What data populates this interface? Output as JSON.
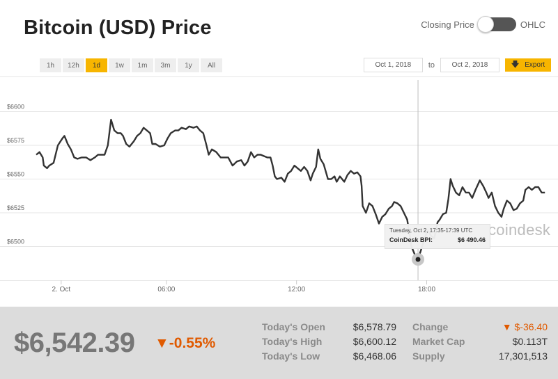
{
  "header": {
    "title": "Bitcoin (USD) Price",
    "toggle_left_label": "Closing Price",
    "toggle_right_label": "OHLC"
  },
  "ranges": [
    {
      "label": "1h",
      "active": false
    },
    {
      "label": "12h",
      "active": false
    },
    {
      "label": "1d",
      "active": true
    },
    {
      "label": "1w",
      "active": false
    },
    {
      "label": "1m",
      "active": false
    },
    {
      "label": "3m",
      "active": false
    },
    {
      "label": "1y",
      "active": false
    },
    {
      "label": "All",
      "active": false
    }
  ],
  "date_range": {
    "from": "Oct 1, 2018",
    "to_label": "to",
    "to": "Oct 2, 2018",
    "export_label": "Export"
  },
  "colors": {
    "accent": "#f7b500",
    "line": "#333333",
    "negative": "#e05a00",
    "grid": "#e6e6e6"
  },
  "watermark": "coindesk",
  "tooltip": {
    "time": "Tuesday, Oct 2, 17:35-17:39 UTC",
    "label": "CoinDesk BPI:",
    "value": "$6 490.46"
  },
  "chart_data": {
    "type": "line",
    "xlabel": "",
    "ylabel": "",
    "ylim": [
      6475,
      6626
    ],
    "xlim": [
      0,
      23.7
    ],
    "x_ticks": [
      {
        "x": 1.15,
        "label": "2. Oct"
      },
      {
        "x": 6,
        "label": "06:00"
      },
      {
        "x": 12,
        "label": "12:00"
      },
      {
        "x": 18,
        "label": "18:00"
      }
    ],
    "y_ticks": [
      {
        "y": 6500,
        "label": "$6500"
      },
      {
        "y": 6525,
        "label": "$6525"
      },
      {
        "y": 6550,
        "label": "$6550"
      },
      {
        "y": 6575,
        "label": "$6575"
      },
      {
        "y": 6600,
        "label": "$6600"
      }
    ],
    "crosshair_x": 17.6,
    "highlight_point": {
      "x": 17.6,
      "y": 6490.46
    },
    "series": [
      {
        "values": [
          [
            0.0,
            6568
          ],
          [
            0.15,
            6570
          ],
          [
            0.3,
            6566
          ],
          [
            0.35,
            6560
          ],
          [
            0.5,
            6558
          ],
          [
            0.6,
            6560
          ],
          [
            0.8,
            6562
          ],
          [
            1.0,
            6575
          ],
          [
            1.2,
            6580
          ],
          [
            1.3,
            6582
          ],
          [
            1.45,
            6576
          ],
          [
            1.6,
            6572
          ],
          [
            1.75,
            6566
          ],
          [
            1.9,
            6565
          ],
          [
            2.1,
            6566
          ],
          [
            2.3,
            6566
          ],
          [
            2.5,
            6564
          ],
          [
            2.7,
            6566
          ],
          [
            2.85,
            6568
          ],
          [
            3.0,
            6568
          ],
          [
            3.15,
            6568
          ],
          [
            3.3,
            6575
          ],
          [
            3.45,
            6594
          ],
          [
            3.6,
            6586
          ],
          [
            3.75,
            6584
          ],
          [
            3.9,
            6584
          ],
          [
            4.0,
            6582
          ],
          [
            4.15,
            6576
          ],
          [
            4.3,
            6574
          ],
          [
            4.5,
            6578
          ],
          [
            4.65,
            6582
          ],
          [
            4.8,
            6584
          ],
          [
            4.95,
            6588
          ],
          [
            5.1,
            6586
          ],
          [
            5.25,
            6584
          ],
          [
            5.35,
            6576
          ],
          [
            5.5,
            6576
          ],
          [
            5.7,
            6574
          ],
          [
            5.9,
            6575
          ],
          [
            6.05,
            6580
          ],
          [
            6.2,
            6584
          ],
          [
            6.4,
            6586
          ],
          [
            6.55,
            6586
          ],
          [
            6.7,
            6588
          ],
          [
            6.9,
            6587
          ],
          [
            7.05,
            6589
          ],
          [
            7.25,
            6588
          ],
          [
            7.4,
            6589
          ],
          [
            7.55,
            6586
          ],
          [
            7.7,
            6584
          ],
          [
            7.85,
            6575
          ],
          [
            7.95,
            6568
          ],
          [
            8.1,
            6572
          ],
          [
            8.3,
            6570
          ],
          [
            8.5,
            6566
          ],
          [
            8.7,
            6566
          ],
          [
            8.85,
            6566
          ],
          [
            9.05,
            6560
          ],
          [
            9.25,
            6563
          ],
          [
            9.45,
            6564
          ],
          [
            9.6,
            6560
          ],
          [
            9.75,
            6563
          ],
          [
            9.9,
            6570
          ],
          [
            10.05,
            6566
          ],
          [
            10.2,
            6568
          ],
          [
            10.35,
            6568
          ],
          [
            10.5,
            6567
          ],
          [
            10.65,
            6566
          ],
          [
            10.8,
            6566
          ],
          [
            10.9,
            6560
          ],
          [
            11.0,
            6552
          ],
          [
            11.1,
            6550
          ],
          [
            11.3,
            6551
          ],
          [
            11.45,
            6548
          ],
          [
            11.6,
            6554
          ],
          [
            11.75,
            6556
          ],
          [
            11.9,
            6560
          ],
          [
            12.05,
            6558
          ],
          [
            12.2,
            6556
          ],
          [
            12.35,
            6559
          ],
          [
            12.5,
            6556
          ],
          [
            12.65,
            6549
          ],
          [
            12.75,
            6554
          ],
          [
            12.9,
            6559
          ],
          [
            13.0,
            6572
          ],
          [
            13.1,
            6565
          ],
          [
            13.25,
            6561
          ],
          [
            13.45,
            6550
          ],
          [
            13.6,
            6550
          ],
          [
            13.75,
            6552
          ],
          [
            13.85,
            6548
          ],
          [
            14.0,
            6552
          ],
          [
            14.2,
            6548
          ],
          [
            14.35,
            6553
          ],
          [
            14.5,
            6556
          ],
          [
            14.65,
            6554
          ],
          [
            14.8,
            6555
          ],
          [
            14.95,
            6552
          ],
          [
            15.0,
            6545
          ],
          [
            15.05,
            6530
          ],
          [
            15.2,
            6525
          ],
          [
            15.35,
            6532
          ],
          [
            15.5,
            6530
          ],
          [
            15.65,
            6524
          ],
          [
            15.8,
            6517
          ],
          [
            15.95,
            6522
          ],
          [
            16.1,
            6524
          ],
          [
            16.25,
            6528
          ],
          [
            16.4,
            6530
          ],
          [
            16.5,
            6533
          ],
          [
            16.65,
            6532
          ],
          [
            16.8,
            6530
          ],
          [
            16.95,
            6525
          ],
          [
            17.1,
            6520
          ],
          [
            17.2,
            6510
          ],
          [
            17.3,
            6500
          ],
          [
            17.45,
            6494
          ],
          [
            17.6,
            6490.46
          ],
          [
            17.75,
            6498
          ],
          [
            17.9,
            6506
          ],
          [
            18.05,
            6512
          ],
          [
            18.2,
            6508
          ],
          [
            18.35,
            6506
          ],
          [
            18.5,
            6518
          ],
          [
            18.6,
            6520
          ],
          [
            18.75,
            6524
          ],
          [
            18.9,
            6525
          ],
          [
            19.0,
            6535
          ],
          [
            19.1,
            6550
          ],
          [
            19.2,
            6545
          ],
          [
            19.35,
            6540
          ],
          [
            19.5,
            6538
          ],
          [
            19.65,
            6544
          ],
          [
            19.8,
            6540
          ],
          [
            19.95,
            6540
          ],
          [
            20.1,
            6536
          ],
          [
            20.25,
            6542
          ],
          [
            20.45,
            6549
          ],
          [
            20.6,
            6545
          ],
          [
            20.75,
            6540
          ],
          [
            20.85,
            6536
          ],
          [
            21.0,
            6540
          ],
          [
            21.15,
            6530
          ],
          [
            21.3,
            6525
          ],
          [
            21.45,
            6522
          ],
          [
            21.55,
            6528
          ],
          [
            21.7,
            6534
          ],
          [
            21.85,
            6532
          ],
          [
            22.0,
            6527
          ],
          [
            22.15,
            6528
          ],
          [
            22.3,
            6532
          ],
          [
            22.45,
            6534
          ],
          [
            22.55,
            6542
          ],
          [
            22.7,
            6544
          ],
          [
            22.85,
            6542
          ],
          [
            23.0,
            6544
          ],
          [
            23.15,
            6544
          ],
          [
            23.3,
            6540
          ],
          [
            23.45,
            6540
          ]
        ]
      }
    ]
  },
  "summary": {
    "price": "$6,542.39",
    "change_pct": "▼-0.55%",
    "stats": [
      {
        "label": "Today's Open",
        "value": "$6,578.79"
      },
      {
        "label": "Today's High",
        "value": "$6,600.12"
      },
      {
        "label": "Today's Low",
        "value": "$6,468.06"
      },
      {
        "label": "Change",
        "value": "▼ $-36.40"
      },
      {
        "label": "Market Cap",
        "value": "$0.113T"
      },
      {
        "label": "Supply",
        "value": "17,301,513"
      }
    ]
  }
}
